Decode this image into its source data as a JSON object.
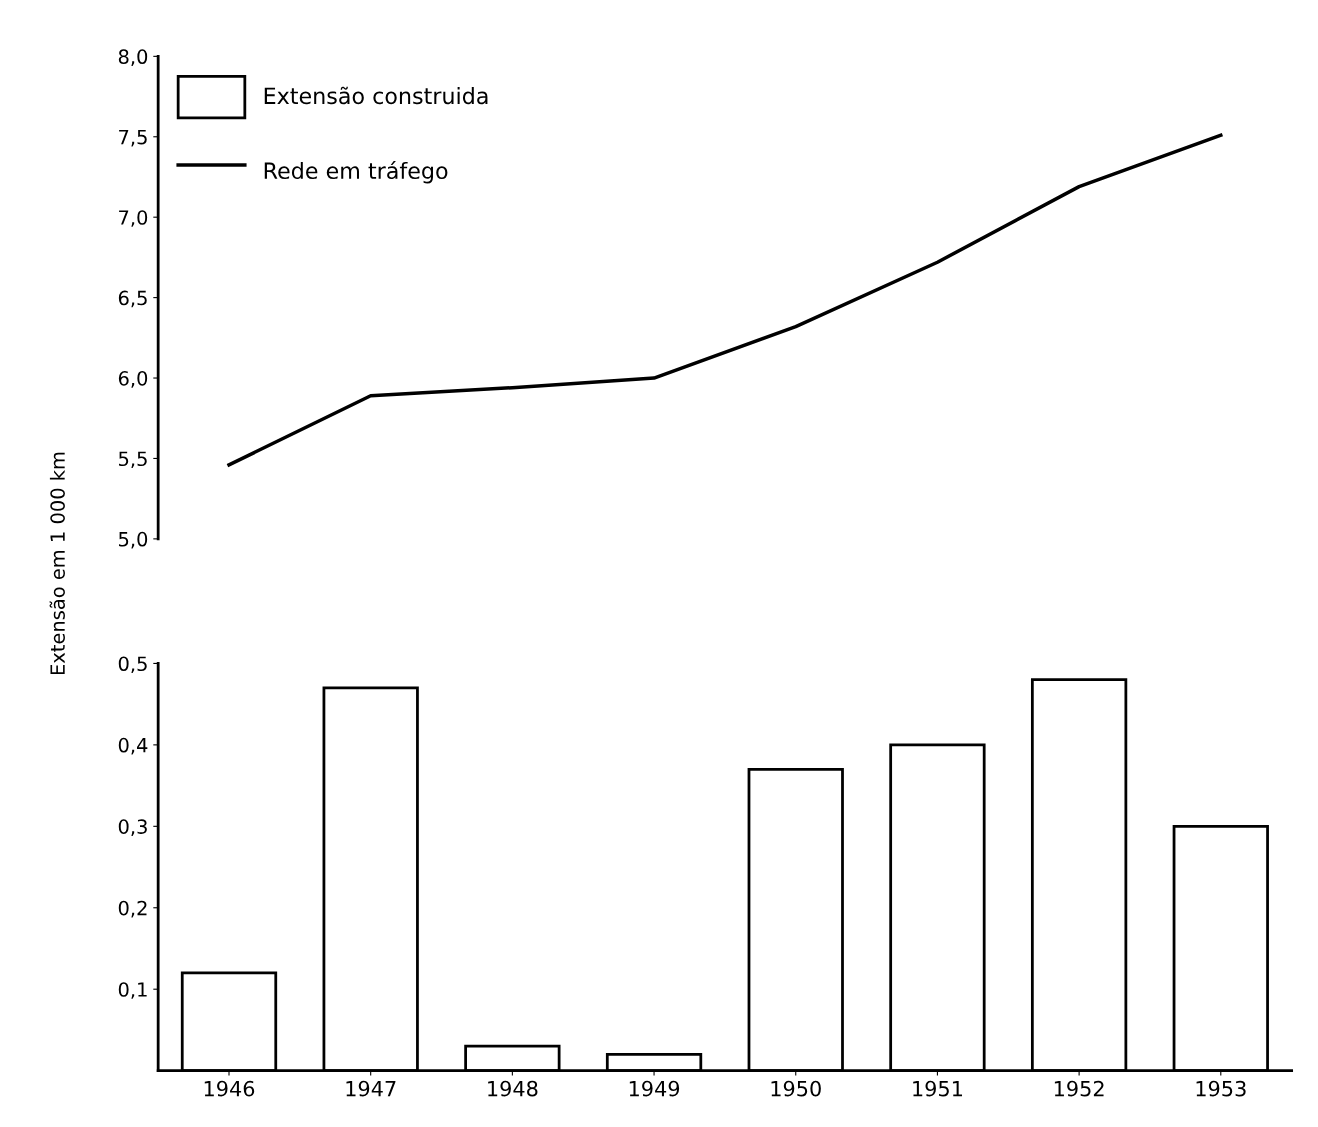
{
  "chart_data": [
    {
      "type": "line",
      "ylabel": "Extensão em 1 000 km",
      "categories": [
        "1946",
        "1947",
        "1948",
        "1949",
        "1950",
        "1951",
        "1952",
        "1953"
      ],
      "series": [
        {
          "name": "Rede em tráfego",
          "color": "#000000",
          "values": [
            5.46,
            5.89,
            5.94,
            6.0,
            6.32,
            6.72,
            7.19,
            7.51
          ]
        }
      ],
      "ylim": [
        5.0,
        8.0
      ],
      "yticks": [
        {
          "value": 5.0,
          "label": "5,0"
        },
        {
          "value": 5.5,
          "label": "5,5"
        },
        {
          "value": 6.0,
          "label": "6,0"
        },
        {
          "value": 6.5,
          "label": "6,5"
        },
        {
          "value": 7.0,
          "label": "7,0"
        },
        {
          "value": 7.5,
          "label": "7,5"
        },
        {
          "value": 8.0,
          "label": "8,0"
        }
      ],
      "tick_labels": "y",
      "legend": "top left",
      "grid": false,
      "marker": "none",
      "line_style": "solid"
    },
    {
      "type": "bar",
      "categories": [
        "1946",
        "1947",
        "1948",
        "1949",
        "1950",
        "1951",
        "1952",
        "1953"
      ],
      "series": [
        {
          "name": "Extensão construida",
          "color": "#ffffff",
          "values": [
            0.12,
            0.47,
            0.03,
            0.02,
            0.37,
            0.4,
            0.48,
            0.3
          ]
        }
      ],
      "ylim": [
        0,
        0.5
      ],
      "yticks": [
        {
          "value": 0.1,
          "label": "0,1"
        },
        {
          "value": 0.2,
          "label": "0,2"
        },
        {
          "value": 0.3,
          "label": "0,3"
        },
        {
          "value": 0.4,
          "label": "0,4"
        },
        {
          "value": 0.5,
          "label": "0,5"
        }
      ],
      "grid": false
    }
  ]
}
